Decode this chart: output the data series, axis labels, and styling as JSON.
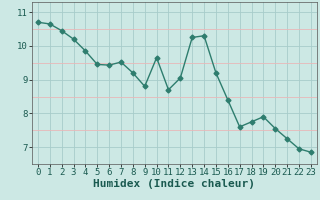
{
  "x": [
    0,
    1,
    2,
    3,
    4,
    5,
    6,
    7,
    8,
    9,
    10,
    11,
    12,
    13,
    14,
    15,
    16,
    17,
    18,
    19,
    20,
    21,
    22,
    23
  ],
  "y": [
    10.7,
    10.65,
    10.45,
    10.2,
    9.85,
    9.45,
    9.43,
    9.52,
    9.2,
    8.8,
    9.65,
    8.7,
    9.05,
    10.25,
    10.3,
    9.2,
    8.4,
    7.6,
    7.75,
    7.9,
    7.55,
    7.25,
    6.95,
    6.85
  ],
  "line_color": "#2e7d6e",
  "marker": "D",
  "marker_size": 2.5,
  "bg_color": "#cce8e4",
  "grid_color_x": "#a8ccca",
  "grid_color_y_major": "#a8ccca",
  "grid_color_y_minor": "#e8b8b8",
  "xlabel": "Humidex (Indice chaleur)",
  "xlabel_fontsize": 8,
  "ylim": [
    6.5,
    11.3
  ],
  "xlim": [
    -0.5,
    23.5
  ],
  "yticks": [
    7,
    8,
    9,
    10,
    11
  ],
  "xticks": [
    0,
    1,
    2,
    3,
    4,
    5,
    6,
    7,
    8,
    9,
    10,
    11,
    12,
    13,
    14,
    15,
    16,
    17,
    18,
    19,
    20,
    21,
    22,
    23
  ],
  "tick_fontsize": 6.5,
  "line_width": 1.0
}
